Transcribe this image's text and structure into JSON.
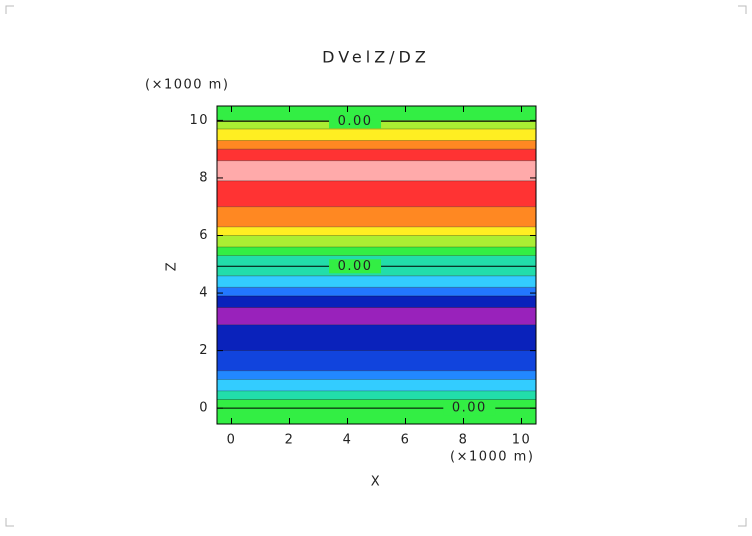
{
  "chart_data": {
    "type": "contour",
    "title": "DVelZ/DZ",
    "x_label": "X",
    "y_label": "Z",
    "x_unit": "(×1000 m)",
    "y_unit": "(×1000 m)",
    "xlim": [
      -0.5,
      10.5
    ],
    "ylim": [
      -0.55,
      10.5
    ],
    "xticks": [
      0,
      2,
      4,
      6,
      8,
      10
    ],
    "yticks": [
      0,
      2,
      4,
      6,
      8,
      10
    ],
    "bands": [
      {
        "from": -0.55,
        "to": 0.3,
        "color": "#33ee44"
      },
      {
        "from": 0.3,
        "to": 0.6,
        "color": "#22ddaa"
      },
      {
        "from": 0.6,
        "to": 1.0,
        "color": "#33ccff"
      },
      {
        "from": 1.0,
        "to": 1.3,
        "color": "#2288ff"
      },
      {
        "from": 1.3,
        "to": 2.0,
        "color": "#1144dd"
      },
      {
        "from": 2.0,
        "to": 2.9,
        "color": "#0a22bb"
      },
      {
        "from": 2.9,
        "to": 3.5,
        "color": "#9922bb"
      },
      {
        "from": 3.5,
        "to": 3.9,
        "color": "#0a22bb"
      },
      {
        "from": 3.9,
        "to": 4.2,
        "color": "#2277ff"
      },
      {
        "from": 4.2,
        "to": 4.6,
        "color": "#33ccff"
      },
      {
        "from": 4.6,
        "to": 5.3,
        "color": "#22ddaa"
      },
      {
        "from": 5.3,
        "to": 5.6,
        "color": "#33ee44"
      },
      {
        "from": 5.6,
        "to": 6.0,
        "color": "#aaee33"
      },
      {
        "from": 6.0,
        "to": 6.3,
        "color": "#ffee22"
      },
      {
        "from": 6.3,
        "to": 7.0,
        "color": "#ff8822"
      },
      {
        "from": 7.0,
        "to": 7.9,
        "color": "#ff3333"
      },
      {
        "from": 7.9,
        "to": 8.6,
        "color": "#ffaaaa"
      },
      {
        "from": 8.6,
        "to": 9.0,
        "color": "#ff3333"
      },
      {
        "from": 9.0,
        "to": 9.3,
        "color": "#ff8822"
      },
      {
        "from": 9.3,
        "to": 9.7,
        "color": "#ffee22"
      },
      {
        "from": 9.7,
        "to": 10.0,
        "color": "#aaee33"
      },
      {
        "from": 10.0,
        "to": 10.5,
        "color": "#33ee44"
      }
    ],
    "contour_labels": [
      {
        "level": 0,
        "label": "0.00",
        "x": 4.26,
        "y": 9.97
      },
      {
        "level": 0,
        "label": "0.00",
        "x": 4.26,
        "y": 4.93
      },
      {
        "level": 0,
        "label": "0.00",
        "x": 8.2,
        "y": 0
      }
    ]
  }
}
